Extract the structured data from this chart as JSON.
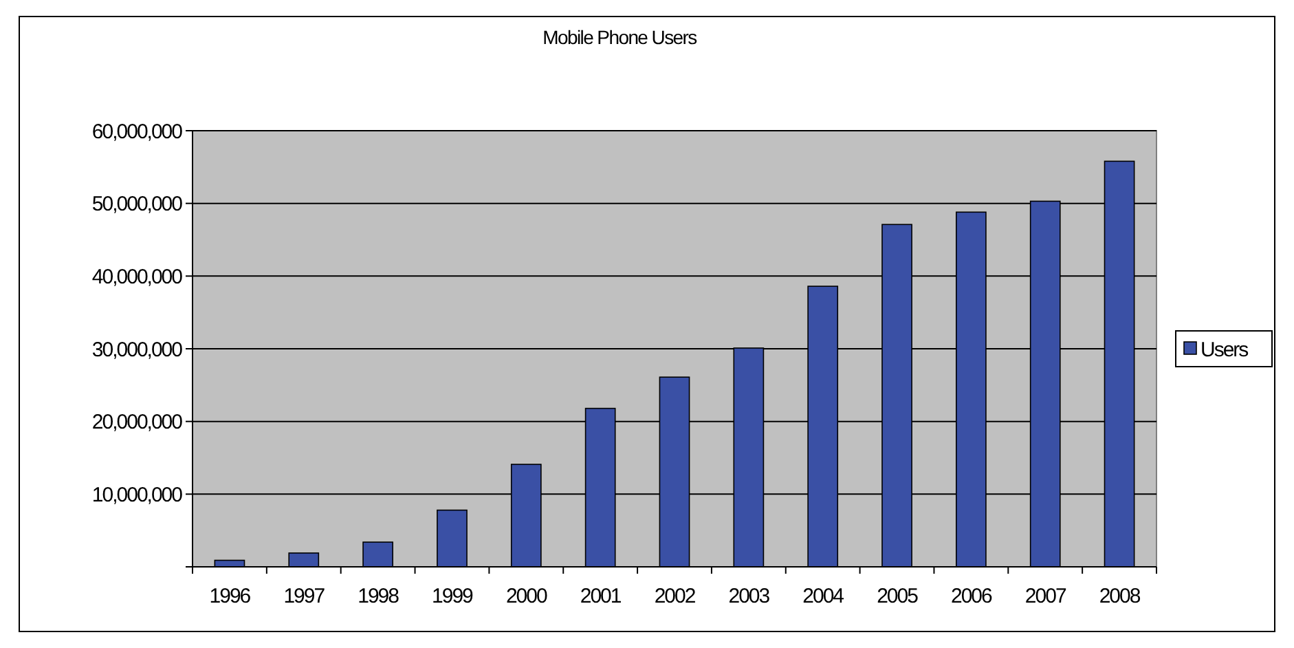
{
  "chart_data": {
    "type": "bar",
    "title": "Mobile Phone Users",
    "categories": [
      "1996",
      "1997",
      "1998",
      "1999",
      "2000",
      "2001",
      "2002",
      "2003",
      "2004",
      "2005",
      "2006",
      "2007",
      "2008"
    ],
    "series": [
      {
        "name": "Users",
        "color": "#3a50a5",
        "values": [
          900000,
          1900000,
          3400000,
          7800000,
          14100000,
          21800000,
          26100000,
          30100000,
          38600000,
          47100000,
          48800000,
          50300000,
          55800000
        ]
      }
    ],
    "ylim": [
      0,
      60000000
    ],
    "yticks": [
      {
        "value": 0,
        "label": null
      },
      {
        "value": 10000000,
        "label": "10,000,000"
      },
      {
        "value": 20000000,
        "label": "20,000,000"
      },
      {
        "value": 30000000,
        "label": "30,000,000"
      },
      {
        "value": 40000000,
        "label": "40,000,000"
      },
      {
        "value": 50000000,
        "label": "50,000,000"
      },
      {
        "value": 60000000,
        "label": "60,000,000"
      }
    ],
    "grid": "y",
    "legend": "right"
  }
}
